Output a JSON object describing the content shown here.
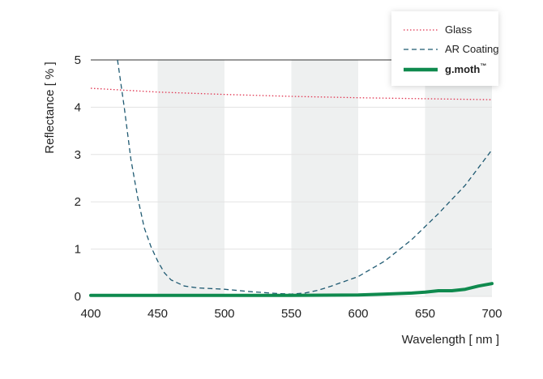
{
  "chart_data": {
    "type": "line",
    "xlabel": "Wavelength [ nm ]",
    "ylabel": "Reflectance [ % ]",
    "xlim": [
      400,
      700
    ],
    "ylim": [
      0,
      5
    ],
    "xticks": [
      "400",
      "450",
      "500",
      "550",
      "600",
      "650",
      "700"
    ],
    "yticks": [
      "0",
      "1",
      "2",
      "3",
      "4",
      "5"
    ],
    "shaded_bands": [
      [
        450,
        500
      ],
      [
        550,
        600
      ],
      [
        650,
        700
      ]
    ],
    "band_color": "#eef0f0",
    "legend_position": "top-right",
    "series": [
      {
        "name": "Glass",
        "style": "dotted",
        "color": "#e0334f",
        "x": [
          400,
          450,
          500,
          550,
          600,
          650,
          700
        ],
        "y": [
          4.4,
          4.32,
          4.27,
          4.23,
          4.2,
          4.18,
          4.16
        ]
      },
      {
        "name": "AR Coating",
        "style": "dashed",
        "color": "#1f5a72",
        "x": [
          420,
          425,
          430,
          435,
          440,
          445,
          450,
          455,
          460,
          470,
          480,
          500,
          520,
          540,
          550,
          560,
          570,
          580,
          600,
          620,
          640,
          660,
          680,
          700
        ],
        "y": [
          5.0,
          4.0,
          2.9,
          2.1,
          1.45,
          1.05,
          0.75,
          0.5,
          0.35,
          0.22,
          0.18,
          0.15,
          0.1,
          0.06,
          0.05,
          0.07,
          0.13,
          0.22,
          0.42,
          0.75,
          1.2,
          1.75,
          2.35,
          3.1
        ]
      },
      {
        "name": "g.moth",
        "name_suffix": "™",
        "style": "solid-bold",
        "color": "#0f8a4e",
        "x": [
          400,
          450,
          500,
          550,
          600,
          620,
          640,
          650,
          660,
          670,
          680,
          690,
          700
        ],
        "y": [
          0.02,
          0.02,
          0.02,
          0.02,
          0.03,
          0.05,
          0.07,
          0.09,
          0.12,
          0.12,
          0.15,
          0.22,
          0.27
        ]
      }
    ]
  }
}
